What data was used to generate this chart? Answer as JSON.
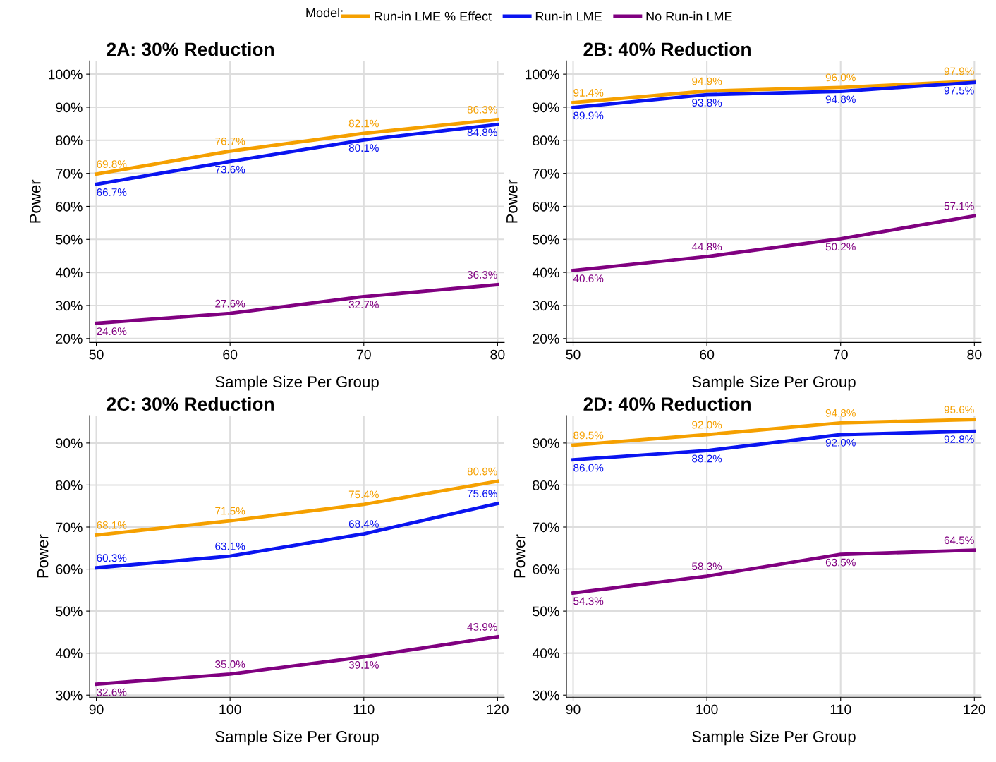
{
  "chart_data": [
    {
      "type": "line",
      "title": "2A: 30% Reduction",
      "xlabel": "Sample Size Per Group",
      "ylabel": "Power",
      "legend_title": "Model:",
      "legend": "top",
      "grid": true,
      "line_style": "solid",
      "marker": "none",
      "x": [
        50,
        60,
        70,
        80
      ],
      "xlim": [
        49.5,
        80.5
      ],
      "xticks": [
        50,
        60,
        70,
        80
      ],
      "ylim": [
        18.8,
        104
      ],
      "yticks": [
        {
          "value": 20,
          "label": "20%"
        },
        {
          "value": 30,
          "label": "30%"
        },
        {
          "value": 40,
          "label": "40%"
        },
        {
          "value": 50,
          "label": "50%"
        },
        {
          "value": 60,
          "label": "60%"
        },
        {
          "value": 70,
          "label": "70%"
        },
        {
          "value": 80,
          "label": "80%"
        },
        {
          "value": 90,
          "label": "90%"
        },
        {
          "value": 100,
          "label": "100%"
        }
      ],
      "series": [
        {
          "name": "Run-in LME % Effect",
          "color": "#f5a000",
          "values": [
            69.8,
            76.7,
            82.1,
            86.3
          ],
          "value_labels": [
            "69.8%",
            "76.7%",
            "82.1%",
            "86.3%"
          ]
        },
        {
          "name": "Run-in LME",
          "color": "#0a14f0",
          "values": [
            66.7,
            73.6,
            80.1,
            84.8
          ],
          "value_labels": [
            "66.7%",
            "73.6%",
            "80.1%",
            "84.8%"
          ]
        },
        {
          "name": "No Run-in LME",
          "color": "#800080",
          "values": [
            24.6,
            27.6,
            32.7,
            36.3
          ],
          "value_labels": [
            "24.6%",
            "27.6%",
            "32.7%",
            "36.3%"
          ]
        }
      ]
    },
    {
      "type": "line",
      "title": "2B: 40% Reduction",
      "xlabel": "Sample Size Per Group",
      "ylabel": "Power",
      "grid": true,
      "line_style": "solid",
      "marker": "none",
      "x": [
        50,
        60,
        70,
        80
      ],
      "xlim": [
        49.5,
        80.5
      ],
      "xticks": [
        50,
        60,
        70,
        80
      ],
      "ylim": [
        18.8,
        104
      ],
      "yticks": [
        {
          "value": 20,
          "label": "20%"
        },
        {
          "value": 30,
          "label": "30%"
        },
        {
          "value": 40,
          "label": "40%"
        },
        {
          "value": 50,
          "label": "50%"
        },
        {
          "value": 60,
          "label": "60%"
        },
        {
          "value": 70,
          "label": "70%"
        },
        {
          "value": 80,
          "label": "80%"
        },
        {
          "value": 90,
          "label": "90%"
        },
        {
          "value": 100,
          "label": "100%"
        }
      ],
      "series": [
        {
          "color": "#f5a000",
          "values": [
            91.4,
            94.9,
            96.0,
            97.9
          ],
          "value_labels": [
            "91.4%",
            "94.9%",
            "96.0%",
            "97.9%"
          ]
        },
        {
          "color": "#0a14f0",
          "values": [
            89.9,
            93.8,
            94.8,
            97.5
          ],
          "value_labels": [
            "89.9%",
            "93.8%",
            "94.8%",
            "97.5%"
          ]
        },
        {
          "color": "#800080",
          "values": [
            40.6,
            44.8,
            50.2,
            57.1
          ],
          "value_labels": [
            "40.6%",
            "44.8%",
            "50.2%",
            "57.1%"
          ]
        }
      ]
    },
    {
      "type": "line",
      "title": "2C: 30% Reduction",
      "xlabel": "Sample Size Per Group",
      "ylabel": "Power",
      "grid": true,
      "line_style": "solid",
      "marker": "none",
      "x": [
        90,
        100,
        110,
        120
      ],
      "xlim": [
        89.5,
        120.5
      ],
      "xticks": [
        90,
        100,
        110,
        120
      ],
      "ylim": [
        29.5,
        96.5
      ],
      "yticks": [
        {
          "value": 30,
          "label": "30%"
        },
        {
          "value": 40,
          "label": "40%"
        },
        {
          "value": 50,
          "label": "50%"
        },
        {
          "value": 60,
          "label": "60%"
        },
        {
          "value": 70,
          "label": "70%"
        },
        {
          "value": 80,
          "label": "80%"
        },
        {
          "value": 90,
          "label": "90%"
        }
      ],
      "series": [
        {
          "color": "#f5a000",
          "values": [
            68.1,
            71.5,
            75.4,
            80.9
          ],
          "value_labels": [
            "68.1%",
            "71.5%",
            "75.4%",
            "80.9%"
          ]
        },
        {
          "color": "#0a14f0",
          "values": [
            60.3,
            63.1,
            68.4,
            75.6
          ],
          "value_labels": [
            "60.3%",
            "63.1%",
            "68.4%",
            "75.6%"
          ]
        },
        {
          "color": "#800080",
          "values": [
            32.6,
            35.0,
            39.1,
            43.9
          ],
          "value_labels": [
            "32.6%",
            "35.0%",
            "39.1%",
            "43.9%"
          ]
        }
      ]
    },
    {
      "type": "line",
      "title": "2D: 40% Reduction",
      "xlabel": "Sample Size Per Group",
      "ylabel": "Power",
      "grid": true,
      "line_style": "solid",
      "marker": "none",
      "x": [
        90,
        100,
        110,
        120
      ],
      "xlim": [
        89.5,
        120.5
      ],
      "xticks": [
        90,
        100,
        110,
        120
      ],
      "ylim": [
        29.5,
        96.5
      ],
      "yticks": [
        {
          "value": 30,
          "label": "30%"
        },
        {
          "value": 40,
          "label": "40%"
        },
        {
          "value": 50,
          "label": "50%"
        },
        {
          "value": 60,
          "label": "60%"
        },
        {
          "value": 70,
          "label": "70%"
        },
        {
          "value": 80,
          "label": "80%"
        },
        {
          "value": 90,
          "label": "90%"
        }
      ],
      "series": [
        {
          "color": "#f5a000",
          "values": [
            89.5,
            92.0,
            94.8,
            95.6
          ],
          "value_labels": [
            "89.5%",
            "92.0%",
            "94.8%",
            "95.6%"
          ]
        },
        {
          "color": "#0a14f0",
          "values": [
            86.0,
            88.2,
            92.0,
            92.8
          ],
          "value_labels": [
            "86.0%",
            "88.2%",
            "92.0%",
            "92.8%"
          ]
        },
        {
          "color": "#800080",
          "values": [
            54.3,
            58.3,
            63.5,
            64.5
          ],
          "value_labels": [
            "54.3%",
            "58.3%",
            "63.5%",
            "64.5%"
          ]
        }
      ]
    }
  ]
}
